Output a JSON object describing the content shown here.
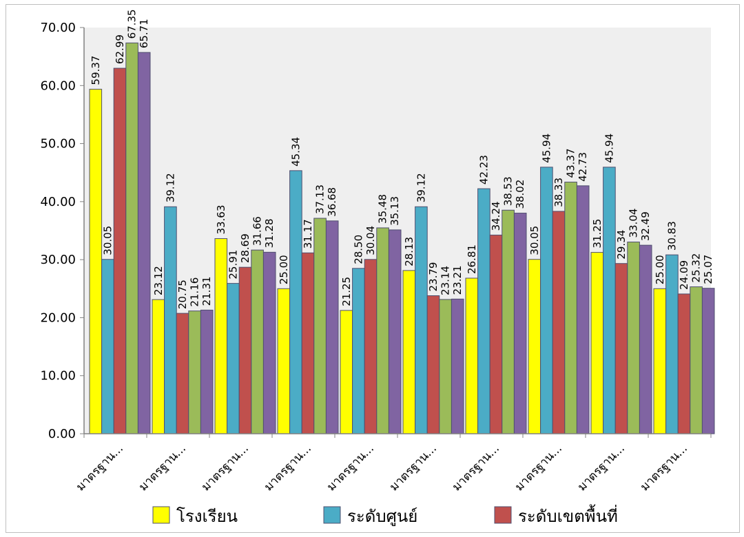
{
  "chart_data": {
    "type": "bar",
    "title": "",
    "xlabel": "",
    "ylabel": "",
    "ylim": [
      0,
      70
    ],
    "yticks": [
      "0.00",
      "10.00",
      "20.00",
      "30.00",
      "40.00",
      "50.00",
      "60.00",
      "70.00"
    ],
    "grid": false,
    "legend_position": "bottom",
    "categories": [
      "มาตรฐาน...",
      "มาตรฐาน...",
      "มาตรฐาน...",
      "มาตรฐาน...",
      "มาตรฐาน...",
      "มาตรฐาน...",
      "มาตรฐาน...",
      "มาตรฐาน...",
      "มาตรฐาน...",
      "มาตรฐาน..."
    ],
    "series": [
      {
        "name": "โรงเรียน",
        "color": "#ffff00",
        "values": [
          59.37,
          23.12,
          33.63,
          25.0,
          21.25,
          28.13,
          26.81,
          30.05,
          31.25,
          25.0
        ],
        "labels": [
          "59.37",
          "23.12",
          "33.63",
          "25.00",
          "21.25",
          "28.13",
          "26.81",
          "30.05",
          "31.25",
          "25.00"
        ]
      },
      {
        "name": "ระดับศูนย์",
        "color": "#4bacc6",
        "values": [
          30.05,
          39.12,
          25.91,
          45.34,
          28.5,
          39.12,
          42.23,
          45.94,
          45.94,
          30.83
        ],
        "labels": [
          "30.05",
          "39.12",
          "25.91",
          "45.34",
          "28.50",
          "39.12",
          "42.23",
          "45.94",
          "45.94",
          "30.83"
        ]
      },
      {
        "name": "ระดับเขตพื้นที่",
        "color": "#c0504d",
        "values": [
          62.99,
          20.75,
          28.69,
          31.17,
          30.04,
          23.79,
          34.24,
          38.33,
          29.34,
          24.09
        ],
        "labels": [
          "62.99",
          "20.75",
          "28.69",
          "31.17",
          "30.04",
          "23.79",
          "34.24",
          "38.33",
          "29.34",
          "24.09"
        ]
      },
      {
        "name": "",
        "color": "#9bbb59",
        "values": [
          67.35,
          21.16,
          31.66,
          37.13,
          35.48,
          23.14,
          38.53,
          43.37,
          33.04,
          25.32
        ],
        "labels": [
          "67.35",
          "21.16",
          "31.66",
          "37.13",
          "35.48",
          "23.14",
          "38.53",
          "43.37",
          "33.04",
          "25.32"
        ]
      },
      {
        "name": "",
        "color": "#8064a2",
        "values": [
          65.71,
          21.31,
          31.28,
          36.68,
          35.13,
          23.21,
          38.02,
          42.73,
          32.49,
          25.07
        ],
        "labels": [
          "65.71",
          "21.31",
          "31.28",
          "36.68",
          "35.13",
          "23.21",
          "38.02",
          "42.73",
          "32.49",
          "25.07"
        ]
      }
    ],
    "legend_entries": [
      "โรงเรียน",
      "ระดับศูนย์",
      "ระดับเขตพื้นที่"
    ]
  },
  "colors": {
    "plot_background": "#efefef",
    "axis": "#808080",
    "bar_outline": "#4f4f6f"
  }
}
